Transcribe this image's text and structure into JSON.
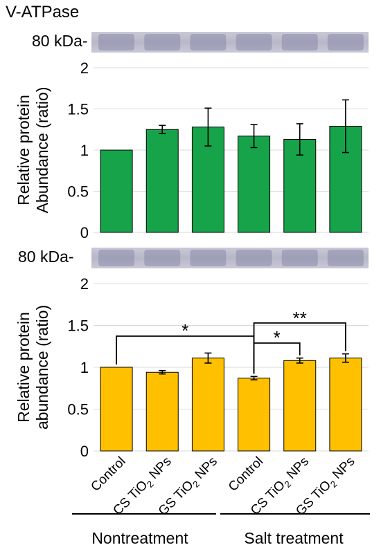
{
  "header": {
    "protein": "V-ATPase"
  },
  "blots": [
    {
      "marker_label": "80 kDa-"
    },
    {
      "marker_label": "80 kDa-"
    }
  ],
  "group_labels": [
    "Nontreatment",
    "Salt treatment"
  ],
  "colors": {
    "top_bars": "#16a34a",
    "bottom_bars": "#ffc000",
    "bar_edge": "#000000",
    "blot_band": "#8a8aaa"
  },
  "chart_data": [
    {
      "type": "bar",
      "title": "",
      "xlabel": "",
      "ylabel": "Relative protein Abundance (ratio)",
      "ylim": [
        0,
        2
      ],
      "yticks": [
        "0",
        "0.5",
        "1",
        "1.5",
        "2"
      ],
      "grid": true,
      "categories": [
        "Control",
        "CS TiO2 NPs",
        "GS TiO2 NPs",
        "Control",
        "CS TiO2 NPs",
        "GS TiO2 NPs"
      ],
      "values": [
        1.0,
        1.25,
        1.28,
        1.17,
        1.13,
        1.29
      ],
      "errors": [
        0.0,
        0.05,
        0.23,
        0.14,
        0.19,
        0.32
      ]
    },
    {
      "type": "bar",
      "title": "",
      "xlabel": "",
      "ylabel": "Relative protein abundance (ratio)",
      "ylim": [
        0,
        2
      ],
      "yticks": [
        "0",
        "0.5",
        "1",
        "1.5",
        "2"
      ],
      "grid": true,
      "categories": [
        "Control",
        "CS TiO2 NPs",
        "GS TiO2 NPs",
        "Control",
        "CS TiO2 NPs",
        "GS TiO2 NPs"
      ],
      "values": [
        1.0,
        0.94,
        1.11,
        0.87,
        1.08,
        1.11
      ],
      "errors": [
        0.0,
        0.02,
        0.06,
        0.02,
        0.03,
        0.05
      ],
      "annotations": [
        {
          "from": 0,
          "to": 3,
          "label": "*"
        },
        {
          "from": 3,
          "to": 4,
          "label": "*"
        },
        {
          "from": 3,
          "to": 5,
          "label": "**"
        }
      ]
    }
  ]
}
